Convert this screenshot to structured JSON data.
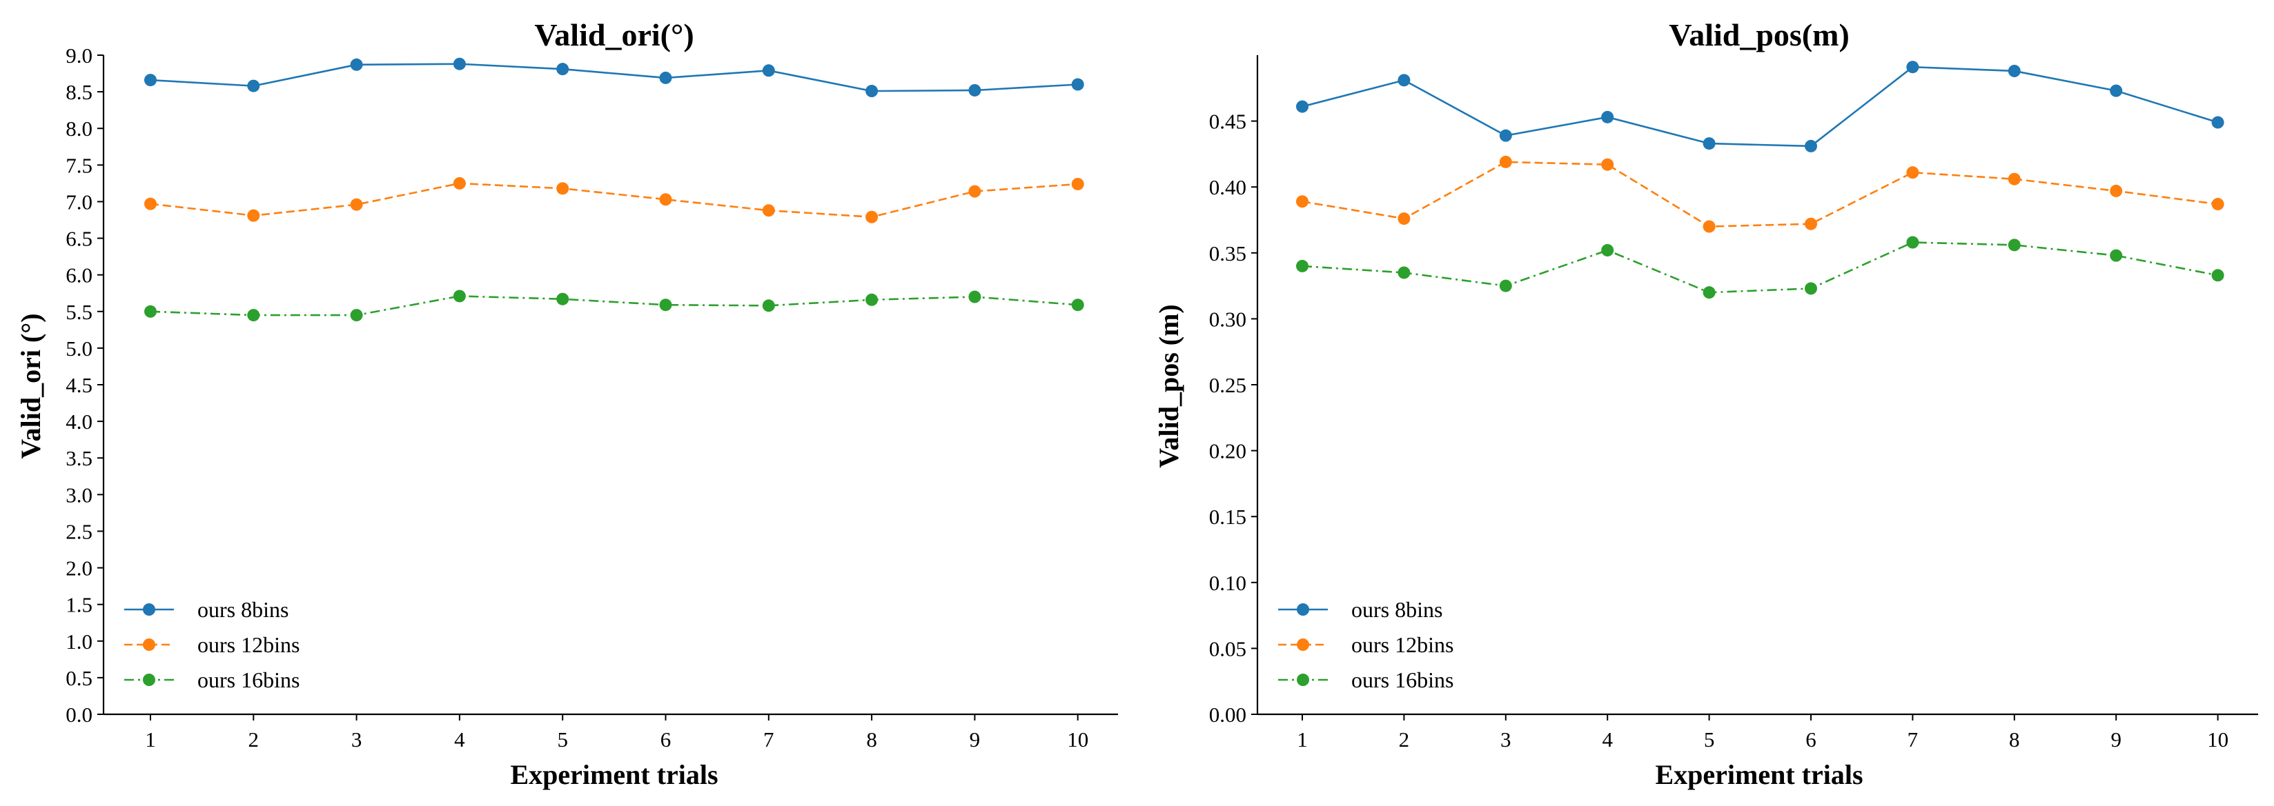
{
  "chart_data": [
    {
      "type": "line",
      "title": "Valid_ori(°)",
      "xlabel": "Experiment trials",
      "ylabel": "Valid_ori (°)",
      "x": [
        1,
        2,
        3,
        4,
        5,
        6,
        7,
        8,
        9,
        10
      ],
      "xticks": [
        "1",
        "2",
        "3",
        "4",
        "5",
        "6",
        "7",
        "8",
        "9",
        "10"
      ],
      "ylim": [
        0,
        9.0
      ],
      "yticks": [
        "0.0",
        "0.5",
        "1.0",
        "1.5",
        "2.0",
        "2.5",
        "3.0",
        "3.5",
        "4.0",
        "4.5",
        "5.0",
        "5.5",
        "6.0",
        "6.5",
        "7.0",
        "7.5",
        "8.0",
        "8.5",
        "9.0"
      ],
      "legend_position": "lower-left",
      "grid": false,
      "series": [
        {
          "name": "ours 8bins",
          "color": "#1f77b4",
          "style": "solid",
          "values": [
            8.66,
            8.58,
            8.87,
            8.88,
            8.81,
            8.69,
            8.79,
            8.51,
            8.52,
            8.6
          ]
        },
        {
          "name": "ours 12bins",
          "color": "#ff7f0e",
          "style": "dashed",
          "values": [
            6.97,
            6.81,
            6.96,
            7.25,
            7.18,
            7.03,
            6.88,
            6.79,
            7.14,
            7.24
          ]
        },
        {
          "name": "ours 16bins",
          "color": "#2ca02c",
          "style": "dashdot",
          "values": [
            5.5,
            5.45,
            5.45,
            5.71,
            5.67,
            5.59,
            5.58,
            5.66,
            5.7,
            5.59
          ]
        }
      ]
    },
    {
      "type": "line",
      "title": "Valid_pos(m)",
      "xlabel": "Experiment trials",
      "ylabel": "Valid_pos (m)",
      "x": [
        1,
        2,
        3,
        4,
        5,
        6,
        7,
        8,
        9,
        10
      ],
      "xticks": [
        "1",
        "2",
        "3",
        "4",
        "5",
        "6",
        "7",
        "8",
        "9",
        "10"
      ],
      "ylim": [
        0,
        0.5
      ],
      "yticks": [
        "0.00",
        "0.05",
        "0.10",
        "0.15",
        "0.20",
        "0.25",
        "0.30",
        "0.35",
        "0.40",
        "0.45"
      ],
      "legend_position": "lower-left",
      "grid": false,
      "series": [
        {
          "name": "ours 8bins",
          "color": "#1f77b4",
          "style": "solid",
          "values": [
            0.461,
            0.481,
            0.439,
            0.453,
            0.433,
            0.431,
            0.491,
            0.488,
            0.473,
            0.449
          ]
        },
        {
          "name": "ours 12bins",
          "color": "#ff7f0e",
          "style": "dashed",
          "values": [
            0.389,
            0.376,
            0.419,
            0.417,
            0.37,
            0.372,
            0.411,
            0.406,
            0.397,
            0.387
          ]
        },
        {
          "name": "ours 16bins",
          "color": "#2ca02c",
          "style": "dashdot",
          "values": [
            0.34,
            0.335,
            0.325,
            0.352,
            0.32,
            0.323,
            0.358,
            0.356,
            0.348,
            0.333
          ]
        }
      ]
    }
  ]
}
